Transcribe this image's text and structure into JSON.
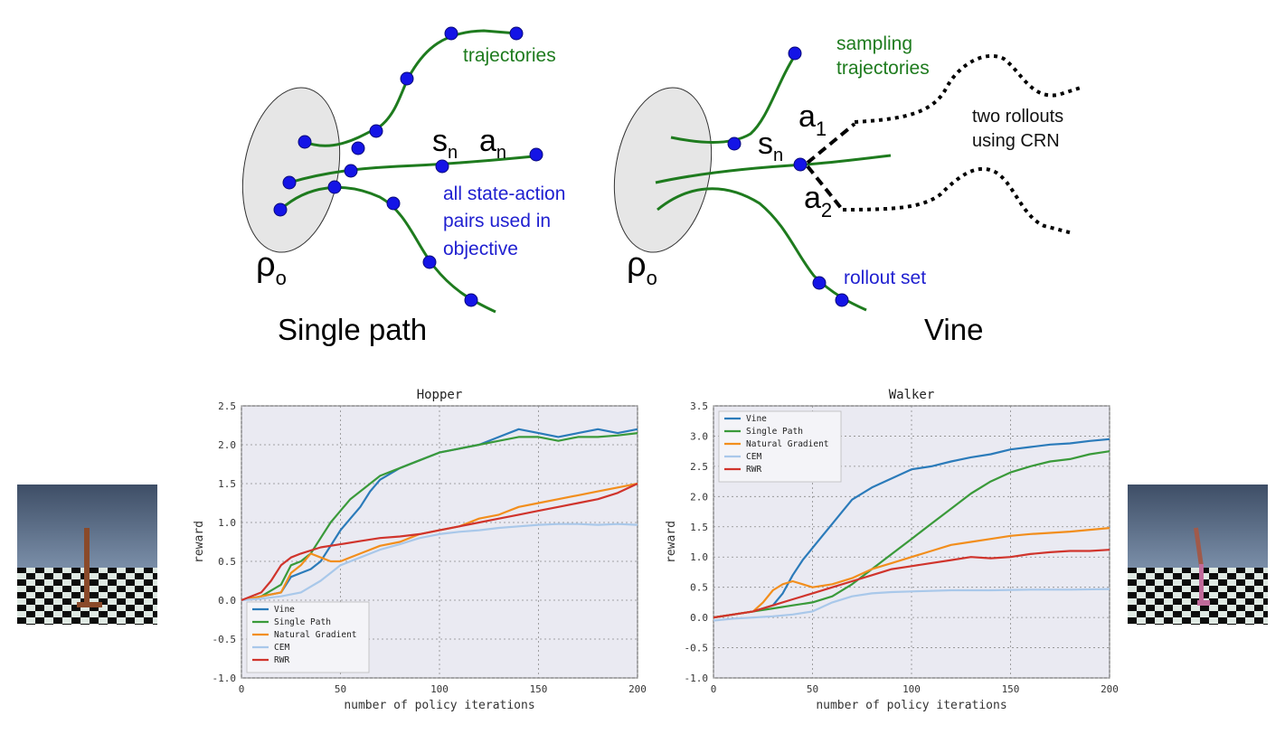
{
  "diagram": {
    "left": {
      "title": "Single path",
      "trajectories_label": "trajectories",
      "state_label": "s",
      "state_sub": "n",
      "action_label": "a",
      "action_sub": "n",
      "objective_lines": [
        "all state-action",
        "pairs used in",
        "objective"
      ],
      "rho_label": "ρ",
      "rho_sub": "o"
    },
    "right": {
      "title": "Vine",
      "sampling_lines": [
        "sampling",
        "trajectories"
      ],
      "state_label": "s",
      "state_sub": "n",
      "a1_label": "a",
      "a1_sub": "1",
      "a2_label": "a",
      "a2_sub": "2",
      "rollouts_lines": [
        "two rollouts",
        "using CRN"
      ],
      "rollout_set_label": "rollout set",
      "rho_label": "ρ",
      "rho_sub": "o"
    }
  },
  "colors": {
    "green": "#1e7b1e",
    "blue_dot": "#1414e6",
    "text_blue": "#1f1fd0",
    "vine": "#2b7bba",
    "single_path": "#3a9a3a",
    "natural_gradient": "#f28e1c",
    "cem": "#a9c8ea",
    "rwr": "#d0342c"
  },
  "chart_data": [
    {
      "type": "line",
      "title": "Hopper",
      "xlabel": "number of policy iterations",
      "ylabel": "reward",
      "xlim": [
        0,
        200
      ],
      "ylim": [
        -1.0,
        2.5
      ],
      "xticks": [
        "0",
        "50",
        "100",
        "150",
        "200"
      ],
      "yticks": [
        "-1.0",
        "-0.5",
        "0.0",
        "0.5",
        "1.0",
        "1.5",
        "2.0",
        "2.5"
      ],
      "grid": true,
      "legend_position": "bottom-left",
      "series": [
        {
          "name": "Vine",
          "color_key": "vine",
          "x": [
            0,
            10,
            20,
            25,
            30,
            35,
            40,
            45,
            50,
            55,
            60,
            65,
            70,
            80,
            90,
            100,
            110,
            120,
            130,
            140,
            150,
            160,
            170,
            180,
            190,
            200
          ],
          "y": [
            0,
            0.05,
            0.1,
            0.3,
            0.35,
            0.4,
            0.5,
            0.7,
            0.9,
            1.05,
            1.2,
            1.4,
            1.55,
            1.7,
            1.8,
            1.9,
            1.95,
            2.0,
            2.1,
            2.2,
            2.15,
            2.1,
            2.15,
            2.2,
            2.15,
            2.2
          ]
        },
        {
          "name": "Single Path",
          "color_key": "single_path",
          "x": [
            0,
            10,
            20,
            25,
            30,
            35,
            40,
            45,
            50,
            55,
            60,
            70,
            80,
            90,
            100,
            110,
            120,
            130,
            140,
            150,
            160,
            170,
            180,
            190,
            200
          ],
          "y": [
            0,
            0.05,
            0.2,
            0.45,
            0.5,
            0.6,
            0.8,
            1.0,
            1.15,
            1.3,
            1.4,
            1.6,
            1.7,
            1.8,
            1.9,
            1.95,
            2.0,
            2.05,
            2.1,
            2.1,
            2.05,
            2.1,
            2.1,
            2.12,
            2.15
          ]
        },
        {
          "name": "Natural Gradient",
          "color_key": "natural_gradient",
          "x": [
            0,
            10,
            20,
            25,
            30,
            35,
            40,
            45,
            50,
            60,
            70,
            80,
            90,
            100,
            110,
            120,
            130,
            140,
            150,
            160,
            170,
            180,
            190,
            200
          ],
          "y": [
            0,
            0.05,
            0.1,
            0.35,
            0.45,
            0.6,
            0.55,
            0.5,
            0.5,
            0.6,
            0.7,
            0.75,
            0.85,
            0.9,
            0.95,
            1.05,
            1.1,
            1.2,
            1.25,
            1.3,
            1.35,
            1.4,
            1.45,
            1.5
          ]
        },
        {
          "name": "CEM",
          "color_key": "cem",
          "x": [
            0,
            10,
            20,
            30,
            40,
            50,
            60,
            70,
            80,
            90,
            100,
            110,
            120,
            130,
            140,
            150,
            160,
            170,
            180,
            190,
            200
          ],
          "y": [
            0,
            0.02,
            0.05,
            0.1,
            0.25,
            0.45,
            0.55,
            0.65,
            0.72,
            0.8,
            0.85,
            0.88,
            0.9,
            0.93,
            0.95,
            0.97,
            0.98,
            0.98,
            0.97,
            0.98,
            0.97
          ]
        },
        {
          "name": "RWR",
          "color_key": "rwr",
          "x": [
            0,
            10,
            15,
            20,
            25,
            30,
            40,
            50,
            60,
            70,
            80,
            90,
            100,
            110,
            120,
            130,
            140,
            150,
            160,
            170,
            180,
            190,
            200
          ],
          "y": [
            0,
            0.1,
            0.25,
            0.45,
            0.55,
            0.6,
            0.68,
            0.72,
            0.76,
            0.8,
            0.82,
            0.85,
            0.9,
            0.95,
            1.0,
            1.05,
            1.1,
            1.15,
            1.2,
            1.25,
            1.3,
            1.38,
            1.5
          ]
        }
      ]
    },
    {
      "type": "line",
      "title": "Walker",
      "xlabel": "number of policy iterations",
      "ylabel": "reward",
      "xlim": [
        0,
        200
      ],
      "ylim": [
        -1.0,
        3.5
      ],
      "xticks": [
        "0",
        "50",
        "100",
        "150",
        "200"
      ],
      "yticks": [
        "-1.0",
        "-0.5",
        "0.0",
        "0.5",
        "1.0",
        "1.5",
        "2.0",
        "2.5",
        "3.0",
        "3.5"
      ],
      "grid": true,
      "legend_position": "top-left",
      "series": [
        {
          "name": "Vine",
          "color_key": "vine",
          "x": [
            0,
            10,
            20,
            30,
            35,
            40,
            45,
            50,
            55,
            60,
            65,
            70,
            80,
            90,
            100,
            110,
            120,
            130,
            140,
            150,
            160,
            170,
            180,
            190,
            200
          ],
          "y": [
            0,
            0.05,
            0.1,
            0.2,
            0.4,
            0.7,
            0.95,
            1.15,
            1.35,
            1.55,
            1.75,
            1.95,
            2.15,
            2.3,
            2.45,
            2.5,
            2.58,
            2.65,
            2.7,
            2.78,
            2.82,
            2.86,
            2.88,
            2.92,
            2.95
          ]
        },
        {
          "name": "Single Path",
          "color_key": "single_path",
          "x": [
            0,
            10,
            20,
            30,
            40,
            50,
            60,
            70,
            80,
            90,
            100,
            110,
            120,
            130,
            140,
            150,
            160,
            170,
            180,
            190,
            200
          ],
          "y": [
            0,
            0.05,
            0.1,
            0.15,
            0.2,
            0.25,
            0.35,
            0.55,
            0.8,
            1.05,
            1.3,
            1.55,
            1.8,
            2.05,
            2.25,
            2.4,
            2.5,
            2.58,
            2.62,
            2.7,
            2.75
          ]
        },
        {
          "name": "Natural Gradient",
          "color_key": "natural_gradient",
          "x": [
            0,
            10,
            20,
            25,
            30,
            35,
            40,
            45,
            50,
            60,
            70,
            80,
            90,
            100,
            110,
            120,
            130,
            140,
            150,
            160,
            170,
            180,
            190,
            200
          ],
          "y": [
            0,
            0.05,
            0.1,
            0.25,
            0.45,
            0.55,
            0.6,
            0.55,
            0.5,
            0.55,
            0.65,
            0.8,
            0.9,
            1.0,
            1.1,
            1.2,
            1.25,
            1.3,
            1.35,
            1.38,
            1.4,
            1.42,
            1.45,
            1.48
          ]
        },
        {
          "name": "CEM",
          "color_key": "cem",
          "x": [
            0,
            10,
            20,
            30,
            40,
            50,
            60,
            70,
            80,
            90,
            100,
            120,
            140,
            160,
            180,
            200
          ],
          "y": [
            -0.05,
            -0.02,
            0.0,
            0.02,
            0.05,
            0.1,
            0.25,
            0.35,
            0.4,
            0.42,
            0.43,
            0.45,
            0.45,
            0.46,
            0.46,
            0.47
          ]
        },
        {
          "name": "RWR",
          "color_key": "rwr",
          "x": [
            0,
            10,
            20,
            30,
            40,
            50,
            60,
            70,
            80,
            90,
            100,
            110,
            120,
            130,
            140,
            150,
            160,
            170,
            180,
            190,
            200
          ],
          "y": [
            0,
            0.05,
            0.1,
            0.2,
            0.3,
            0.4,
            0.5,
            0.6,
            0.7,
            0.8,
            0.85,
            0.9,
            0.95,
            1.0,
            0.98,
            1.0,
            1.05,
            1.08,
            1.1,
            1.1,
            1.12
          ]
        }
      ]
    }
  ]
}
